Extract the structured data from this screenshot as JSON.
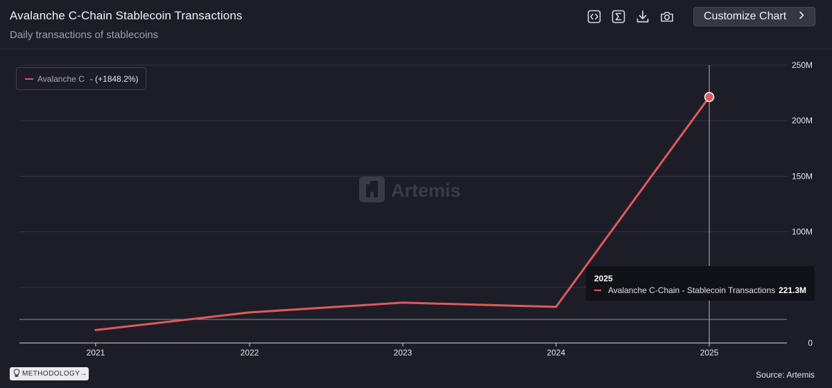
{
  "header": {
    "title": "Avalanche C-Chain Stablecoin Transactions",
    "subtitle": "Daily transactions of stablecoins",
    "toolbar": {
      "icons": [
        "embed-code-icon",
        "sigma-icon",
        "download-icon",
        "camera-icon"
      ],
      "customize_label": "Customize Chart"
    }
  },
  "legend": {
    "name": "Avalanche C",
    "change": "- (+1848.2%)"
  },
  "tooltip": {
    "title": "2025",
    "series": "Avalanche C-Chain - Stablecoin Transactions",
    "value": "221.3M"
  },
  "watermark": "Artemis",
  "footer": {
    "methodology_label": "METHODOLOGY→",
    "source": "Source: Artemis"
  },
  "colors": {
    "series": "#e05a5a",
    "background": "#1c1d27"
  },
  "chart_data": {
    "type": "line",
    "x": [
      "2021",
      "2022",
      "2023",
      "2024",
      "2025"
    ],
    "series": [
      {
        "name": "Avalanche C-Chain - Stablecoin Transactions",
        "values": [
          11.6,
          27.5,
          36.3,
          32.5,
          221.3
        ]
      }
    ],
    "ylim": [
      0,
      250
    ],
    "y_ticks": [
      0,
      50,
      100,
      150,
      200,
      250
    ],
    "y_tick_labels": [
      "0",
      "",
      "100M",
      "150M",
      "200M",
      "250M"
    ],
    "y_axis_position": "right",
    "grid": true,
    "highlighted_point": "2025"
  }
}
